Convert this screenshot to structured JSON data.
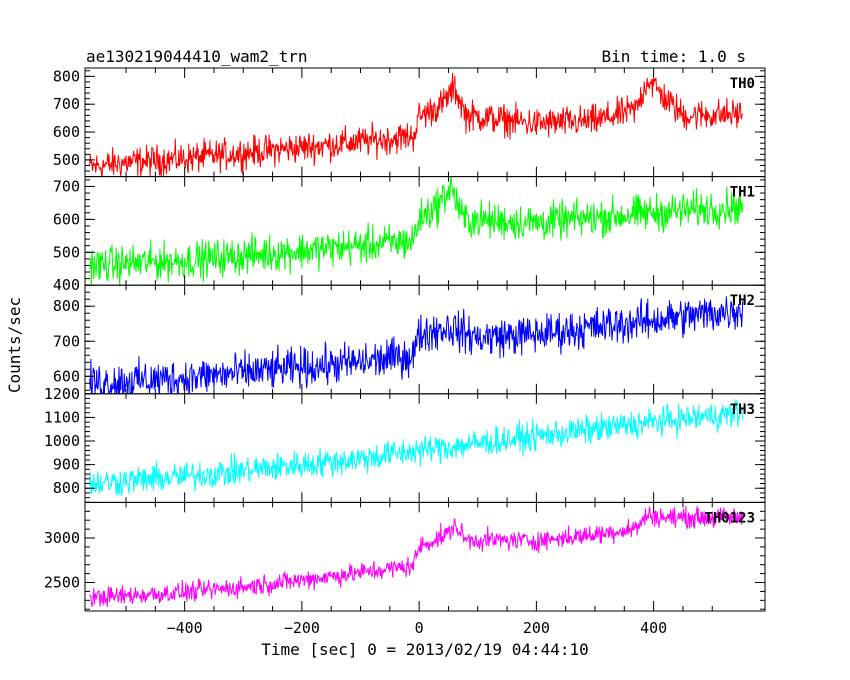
{
  "header": {
    "title": "ae130219044410_wam2_trn",
    "bin_time": "Bin time: 1.0 s"
  },
  "axes": {
    "xlabel": "Time [sec] 0 = 2013/02/19 04:44:10",
    "ylabel": "Counts/sec"
  },
  "chart_data": {
    "type": "line",
    "xlim": [
      -570,
      590
    ],
    "xticks": [
      -400,
      -200,
      0,
      200,
      400
    ],
    "xticklabels": [
      "−400",
      "−200",
      "0",
      "200",
      "400"
    ],
    "panels": [
      {
        "name": "TH0",
        "color": "#ff0000",
        "ylim": [
          440,
          830
        ],
        "yticks": [
          500,
          600,
          700,
          800
        ],
        "points": [
          [
            -560,
            475
          ],
          [
            -500,
            490
          ],
          [
            -400,
            505
          ],
          [
            -300,
            525
          ],
          [
            -200,
            545
          ],
          [
            -100,
            565
          ],
          [
            -10,
            585
          ],
          [
            0,
            655
          ],
          [
            40,
            700
          ],
          [
            60,
            760
          ],
          [
            80,
            660
          ],
          [
            200,
            630
          ],
          [
            300,
            640
          ],
          [
            370,
            680
          ],
          [
            390,
            790
          ],
          [
            420,
            720
          ],
          [
            450,
            660
          ],
          [
            550,
            665
          ]
        ],
        "noise": 55
      },
      {
        "name": "TH1",
        "color": "#00ff00",
        "ylim": [
          400,
          730
        ],
        "yticks": [
          400,
          500,
          600,
          700
        ],
        "points": [
          [
            -560,
            460
          ],
          [
            -400,
            475
          ],
          [
            -300,
            490
          ],
          [
            -200,
            505
          ],
          [
            -100,
            520
          ],
          [
            -10,
            535
          ],
          [
            0,
            600
          ],
          [
            30,
            640
          ],
          [
            55,
            700
          ],
          [
            75,
            600
          ],
          [
            200,
            590
          ],
          [
            300,
            605
          ],
          [
            400,
            620
          ],
          [
            550,
            640
          ]
        ],
        "noise": 55
      },
      {
        "name": "TH2",
        "color": "#0000ff",
        "ylim": [
          550,
          860
        ],
        "yticks": [
          600,
          700,
          800
        ],
        "points": [
          [
            -560,
            580
          ],
          [
            -400,
            595
          ],
          [
            -300,
            610
          ],
          [
            -200,
            625
          ],
          [
            -100,
            640
          ],
          [
            -10,
            660
          ],
          [
            0,
            720
          ],
          [
            50,
            740
          ],
          [
            100,
            710
          ],
          [
            200,
            720
          ],
          [
            300,
            740
          ],
          [
            400,
            760
          ],
          [
            550,
            790
          ]
        ],
        "noise": 55
      },
      {
        "name": "TH3",
        "color": "#00ffff",
        "ylim": [
          740,
          1200
        ],
        "yticks": [
          800,
          900,
          1000,
          1100,
          1200
        ],
        "points": [
          [
            -560,
            820
          ],
          [
            -400,
            850
          ],
          [
            -300,
            875
          ],
          [
            -200,
            900
          ],
          [
            -100,
            925
          ],
          [
            0,
            960
          ],
          [
            100,
            990
          ],
          [
            200,
            1020
          ],
          [
            300,
            1050
          ],
          [
            400,
            1080
          ],
          [
            550,
            1120
          ]
        ],
        "noise": 60
      },
      {
        "name": "TH0123",
        "color": "#ff00ff",
        "ylim": [
          2180,
          3400
        ],
        "yticks": [
          2500,
          3000
        ],
        "points": [
          [
            -560,
            2330
          ],
          [
            -400,
            2390
          ],
          [
            -300,
            2450
          ],
          [
            -200,
            2530
          ],
          [
            -100,
            2610
          ],
          [
            -10,
            2690
          ],
          [
            0,
            2900
          ],
          [
            50,
            3050
          ],
          [
            60,
            3150
          ],
          [
            80,
            2980
          ],
          [
            200,
            2970
          ],
          [
            300,
            3040
          ],
          [
            370,
            3110
          ],
          [
            390,
            3260
          ],
          [
            420,
            3230
          ],
          [
            550,
            3230
          ]
        ],
        "noise": 110
      }
    ]
  }
}
